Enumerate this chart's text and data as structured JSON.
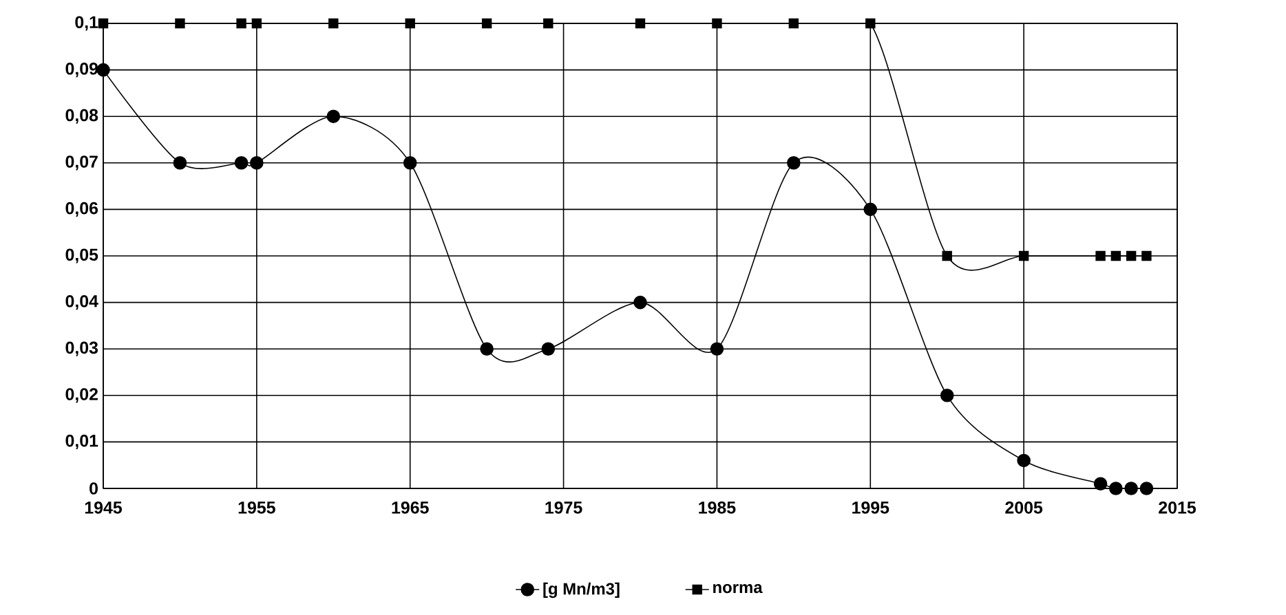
{
  "chart_data": {
    "type": "line",
    "x": [
      1945,
      1950,
      1954,
      1955,
      1960,
      1965,
      1970,
      1974,
      1980,
      1985,
      1990,
      1995,
      2000,
      2005,
      2010,
      2011,
      2012,
      2013
    ],
    "series": [
      {
        "name": "[g Mn/m3]",
        "color": "#000000",
        "marker": "circle",
        "values": [
          0.09,
          0.07,
          0.07,
          0.07,
          0.08,
          0.07,
          0.03,
          0.03,
          0.04,
          0.03,
          0.07,
          0.06,
          0.02,
          0.006,
          0.001,
          0,
          0,
          0
        ]
      },
      {
        "name": "norma",
        "color": "#000000",
        "marker": "square",
        "values": [
          0.1,
          0.1,
          0.1,
          0.1,
          0.1,
          0.1,
          0.1,
          0.1,
          0.1,
          0.1,
          0.1,
          0.1,
          0.05,
          0.05,
          0.05,
          0.05,
          0.05,
          0.05
        ]
      }
    ],
    "xlim": [
      1945,
      2015
    ],
    "ylim": [
      0,
      0.1
    ],
    "xticks": [
      1945,
      1955,
      1965,
      1975,
      1985,
      1995,
      2005,
      2015
    ],
    "yticks": [
      0,
      {
        "value": 0.01,
        "label": "0,01"
      },
      {
        "value": 0.02,
        "label": "0,02"
      },
      {
        "value": 0.03,
        "label": "0,03"
      },
      {
        "value": 0.04,
        "label": "0,04"
      },
      {
        "value": 0.05,
        "label": "0,05"
      },
      {
        "value": 0.06,
        "label": "0,06"
      },
      {
        "value": 0.07,
        "label": "0,07"
      },
      {
        "value": 0.08,
        "label": "0,08"
      },
      {
        "value": 0.09,
        "label": "0,09"
      },
      {
        "value": 0.1,
        "label": "0,1"
      }
    ],
    "grid": true,
    "legend": "bottom",
    "line_style": "solid"
  }
}
